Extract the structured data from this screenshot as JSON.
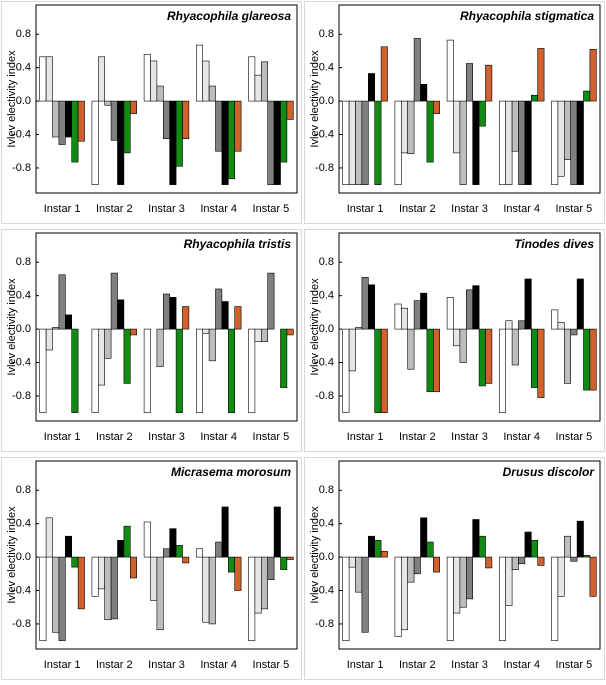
{
  "chart_data": [
    {
      "type": "bar",
      "title": "Rhyacophila glareosa",
      "ylabel": "Ivlev electivity index",
      "categories": [
        "Instar 1",
        "Instar 2",
        "Instar 3",
        "Instar 4",
        "Instar 5"
      ],
      "series": [
        {
          "color": "#ffffff",
          "values": [
            0.53,
            -1,
            0.56,
            0.67,
            0.53
          ]
        },
        {
          "color": "#e6e6e6",
          "values": [
            0.53,
            0.53,
            0.48,
            0.48,
            0.31
          ]
        },
        {
          "color": "#bdbdbd",
          "values": [
            -0.43,
            -0.05,
            0.18,
            0.18,
            0.47
          ]
        },
        {
          "color": "#808080",
          "values": [
            -0.52,
            -0.47,
            -0.45,
            -0.6,
            -1
          ]
        },
        {
          "color": "#000000",
          "values": [
            -0.43,
            -1,
            -1,
            -1,
            -1
          ]
        },
        {
          "color": "#138a13",
          "values": [
            -0.73,
            -0.62,
            -0.78,
            -0.93,
            -0.73
          ]
        },
        {
          "color": "#d2602c",
          "values": [
            -0.48,
            -0.15,
            -0.45,
            -0.6,
            -0.22
          ]
        }
      ],
      "ylim": [
        -1.1,
        1.15
      ],
      "yticks": [
        -0.8,
        -0.4,
        {
          "value": 0,
          "label": "0.0"
        },
        0.4,
        0.8
      ]
    },
    {
      "type": "bar",
      "title": "Rhyacophila stigmatica",
      "ylabel": "Ivlev electivity index",
      "categories": [
        "Instar 1",
        "Instar 2",
        "Instar 3",
        "Instar 4",
        "Instar 5"
      ],
      "series": [
        {
          "color": "#ffffff",
          "values": [
            -1,
            -1,
            0.73,
            -1,
            -1
          ]
        },
        {
          "color": "#e6e6e6",
          "values": [
            -1,
            -0.62,
            -0.62,
            -1,
            -0.9
          ]
        },
        {
          "color": "#bdbdbd",
          "values": [
            -1,
            -0.63,
            -1,
            -0.6,
            -0.7
          ]
        },
        {
          "color": "#808080",
          "values": [
            -1,
            0.75,
            0.45,
            -1,
            -1
          ]
        },
        {
          "color": "#000000",
          "values": [
            0.33,
            0.2,
            -1,
            -1,
            -1
          ]
        },
        {
          "color": "#138a13",
          "values": [
            -1,
            -0.73,
            -0.3,
            0.07,
            0.12
          ]
        },
        {
          "color": "#d2602c",
          "values": [
            0.65,
            -0.15,
            0.43,
            0.63,
            0.62
          ]
        }
      ],
      "ylim": [
        -1.1,
        1.15
      ],
      "yticks": [
        -0.8,
        -0.4,
        {
          "value": 0,
          "label": "0.0"
        },
        0.4,
        0.8
      ]
    },
    {
      "type": "bar",
      "title": "Rhyacophila tristis",
      "ylabel": "Ivlev electivity index",
      "categories": [
        "Instar 1",
        "Instar 2",
        "Instar 3",
        "Instar 4",
        "Instar 5"
      ],
      "series": [
        {
          "color": "#ffffff",
          "values": [
            -1,
            -1,
            -1,
            -1,
            -1
          ]
        },
        {
          "color": "#e6e6e6",
          "values": [
            -0.25,
            -0.67,
            0,
            -0.05,
            -0.15
          ]
        },
        {
          "color": "#bdbdbd",
          "values": [
            0.02,
            -0.35,
            -0.45,
            -0.38,
            -0.15
          ]
        },
        {
          "color": "#808080",
          "values": [
            0.65,
            0.67,
            0.42,
            0.48,
            0.67
          ]
        },
        {
          "color": "#000000",
          "values": [
            0.17,
            0.35,
            0.38,
            0.33,
            0
          ]
        },
        {
          "color": "#138a13",
          "values": [
            -1,
            -0.65,
            -1,
            -1,
            -0.7
          ]
        },
        {
          "color": "#d2602c",
          "values": [
            0,
            -0.07,
            0.27,
            0.27,
            -0.07
          ]
        }
      ],
      "ylim": [
        -1.1,
        1.15
      ],
      "yticks": [
        -0.8,
        -0.4,
        {
          "value": 0,
          "label": "0.0"
        },
        0.4,
        0.8
      ]
    },
    {
      "type": "bar",
      "title": "Tinodes dives",
      "ylabel": "Ivlev electivity index",
      "categories": [
        "Instar 1",
        "Instar 2",
        "Instar 3",
        "Instar 4",
        "Instar 5"
      ],
      "series": [
        {
          "color": "#ffffff",
          "values": [
            -1,
            0.3,
            0.38,
            -1,
            0.23
          ]
        },
        {
          "color": "#e6e6e6",
          "values": [
            -0.5,
            0.25,
            -0.2,
            0.1,
            0.08
          ]
        },
        {
          "color": "#bdbdbd",
          "values": [
            0.02,
            -0.48,
            -0.4,
            -0.43,
            -0.65
          ]
        },
        {
          "color": "#808080",
          "values": [
            0.62,
            0.34,
            0.47,
            0.1,
            -0.07
          ]
        },
        {
          "color": "#000000",
          "values": [
            0.53,
            0.43,
            0.52,
            0.6,
            0.6
          ]
        },
        {
          "color": "#138a13",
          "values": [
            -1,
            -0.75,
            -0.68,
            -0.7,
            -0.73
          ]
        },
        {
          "color": "#d2602c",
          "values": [
            -1,
            -0.75,
            -0.65,
            -0.82,
            -0.73
          ]
        }
      ],
      "ylim": [
        -1.1,
        1.15
      ],
      "yticks": [
        -0.8,
        -0.4,
        {
          "value": 0,
          "label": "0.0"
        },
        0.4,
        0.8
      ]
    },
    {
      "type": "bar",
      "title": "Micrasema morosum",
      "ylabel": "Ivlev electivity index",
      "categories": [
        "Instar 1",
        "Instar 2",
        "Instar 3",
        "Instar 4",
        "Instar 5"
      ],
      "series": [
        {
          "color": "#ffffff",
          "values": [
            -1,
            -0.47,
            0.42,
            0.1,
            -1
          ]
        },
        {
          "color": "#e6e6e6",
          "values": [
            0.47,
            -0.38,
            -0.52,
            -0.78,
            -0.67
          ]
        },
        {
          "color": "#bdbdbd",
          "values": [
            -0.9,
            -0.75,
            -0.87,
            -0.8,
            -0.62
          ]
        },
        {
          "color": "#808080",
          "values": [
            -1,
            -0.74,
            0.1,
            0.18,
            -0.27
          ]
        },
        {
          "color": "#000000",
          "values": [
            0.25,
            0.2,
            0.34,
            0.6,
            0.6
          ]
        },
        {
          "color": "#138a13",
          "values": [
            -0.12,
            0.37,
            0.14,
            -0.18,
            -0.15
          ]
        },
        {
          "color": "#d2602c",
          "values": [
            -0.62,
            -0.25,
            -0.07,
            -0.4,
            -0.03
          ]
        }
      ],
      "ylim": [
        -1.1,
        1.15
      ],
      "yticks": [
        -0.8,
        -0.4,
        {
          "value": 0,
          "label": "0.0"
        },
        0.4,
        0.8
      ]
    },
    {
      "type": "bar",
      "title": "Drusus discolor",
      "ylabel": "Ivlev electivity index",
      "categories": [
        "Instar 1",
        "Instar 2",
        "Instar 3",
        "Instar 4",
        "Instar 5"
      ],
      "series": [
        {
          "color": "#ffffff",
          "values": [
            -1,
            -0.95,
            -1,
            -1,
            -1
          ]
        },
        {
          "color": "#e6e6e6",
          "values": [
            -0.12,
            -0.87,
            -0.67,
            -0.58,
            -0.47
          ]
        },
        {
          "color": "#bdbdbd",
          "values": [
            -0.42,
            -0.3,
            -0.6,
            -0.15,
            0.25
          ]
        },
        {
          "color": "#808080",
          "values": [
            -0.9,
            -0.2,
            -0.5,
            -0.08,
            -0.05
          ]
        },
        {
          "color": "#000000",
          "values": [
            0.25,
            0.47,
            0.45,
            0.3,
            0.43
          ]
        },
        {
          "color": "#138a13",
          "values": [
            0.2,
            0.18,
            0.25,
            0.2,
            0.02
          ]
        },
        {
          "color": "#d2602c",
          "values": [
            0.07,
            -0.18,
            -0.13,
            -0.1,
            -0.47
          ]
        }
      ],
      "ylim": [
        -1.1,
        1.15
      ],
      "yticks": [
        -0.8,
        -0.4,
        {
          "value": 0,
          "label": "0.0"
        },
        0.4,
        0.8
      ]
    }
  ]
}
